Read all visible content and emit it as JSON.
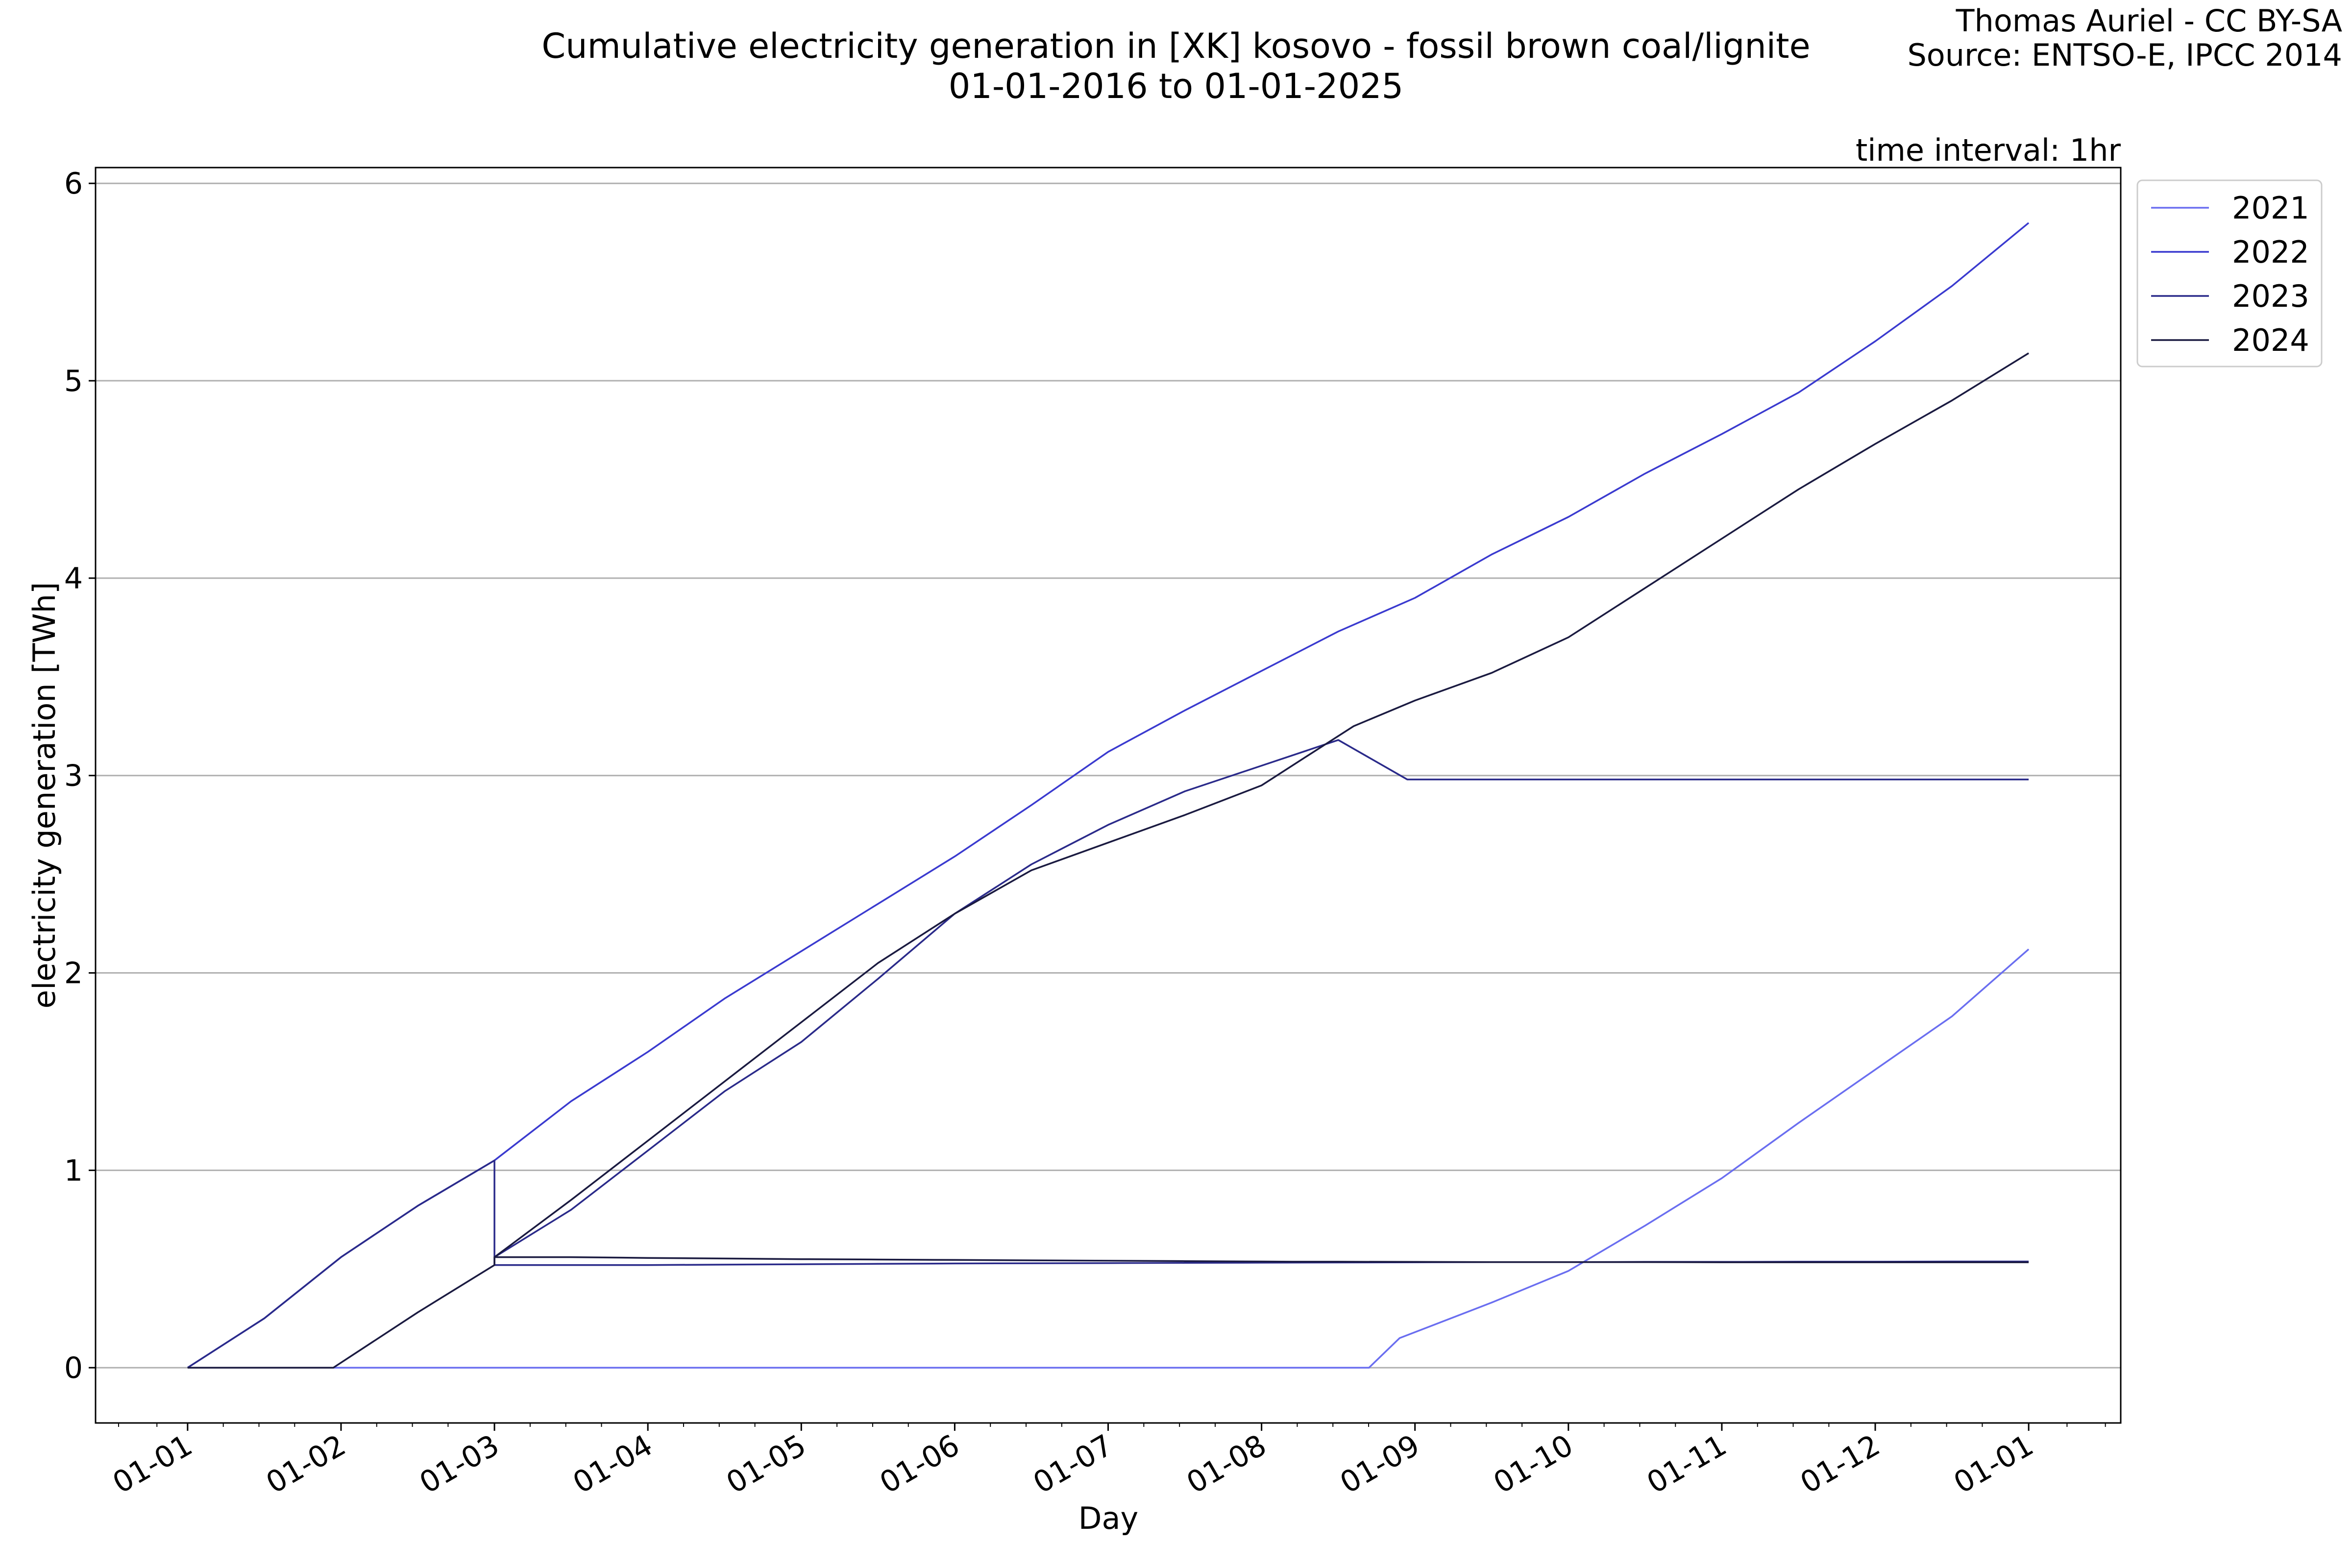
{
  "chart_data": {
    "type": "line",
    "title": "Cumulative electricity generation in [XK] kosovo - fossil brown coal/lignite",
    "subtitle": "01-01-2016 to 01-01-2025",
    "credit_line1": "Thomas Auriel - CC BY-SA",
    "credit_line2": "Source: ENTSO-E, IPCC 2014",
    "annotation": "time interval: 1hr",
    "xlabel": "Day",
    "ylabel": "electricity generation [TWh]",
    "x_ticks": [
      "01-01",
      "01-02",
      "01-03",
      "01-04",
      "01-05",
      "01-06",
      "01-07",
      "01-08",
      "01-09",
      "01-10",
      "01-11",
      "01-12",
      "01-01"
    ],
    "ylim": [
      -0.28,
      6.08
    ],
    "y_ticks": [
      0,
      1,
      2,
      3,
      4,
      5,
      6
    ],
    "grid": "horizontal",
    "legend_position": "outside-top-right",
    "x_unit_note": "x values are months since 01-01",
    "series": [
      {
        "name": "2021",
        "color": "#6a6ef0",
        "x": [
          0,
          7.7,
          7.9,
          8.5,
          9.0,
          9.5,
          10.0,
          10.5,
          11.0,
          11.5,
          12.0
        ],
        "y": [
          0,
          0,
          0.15,
          0.33,
          0.49,
          0.72,
          0.96,
          1.24,
          1.51,
          1.78,
          2.12
        ]
      },
      {
        "name": "2022",
        "color": "#3a3acf",
        "x": [
          0,
          0.5,
          1.0,
          1.5,
          2.0,
          2.5,
          3.0,
          3.5,
          4.0,
          4.5,
          5.0,
          5.5,
          6.0,
          6.5,
          7.0,
          7.5,
          8.0,
          8.5,
          9.0,
          9.5,
          10.0,
          10.5,
          11.0,
          11.5,
          12.0
        ],
        "y": [
          0,
          0.25,
          0.56,
          0.82,
          1.05,
          1.35,
          1.6,
          1.87,
          2.11,
          2.35,
          2.59,
          2.85,
          3.12,
          3.33,
          3.53,
          3.73,
          3.9,
          4.12,
          4.31,
          4.53,
          4.73,
          4.94,
          5.2,
          5.48,
          5.8
        ]
      },
      {
        "name": "2023",
        "color": "#2a2a8a",
        "x": [
          0,
          0.5,
          1.0,
          1.5,
          2.0,
          2.0,
          2.5,
          3.0,
          3.5,
          4.0,
          4.5,
          5.0,
          5.5,
          6.0,
          6.5,
          7.0,
          7.5,
          8.0,
          8.5,
          9.0,
          9.5,
          10.0,
          10.5,
          11.0,
          11.5,
          12.0
        ],
        "y": [
          0,
          0.25,
          0.56,
          0.82,
          1.05,
          0.52,
          0.52,
          0.52,
          0.522,
          0.524,
          0.526,
          0.528,
          0.529,
          0.53,
          0.531,
          0.532,
          0.533,
          0.534,
          0.535,
          0.535,
          0.536,
          0.536,
          0.537,
          0.537,
          0.538,
          0.538
        ]
      },
      {
        "name": "2024",
        "color": "#1a1a40",
        "x": [
          0,
          0.95,
          1.5,
          2.0,
          2.0,
          2.5,
          3.0,
          3.5,
          4.0,
          4.5,
          5.0,
          5.5,
          6.0,
          6.5,
          7.0,
          7.2,
          7.5,
          8.0,
          8.5,
          9.0,
          9.5,
          10.0,
          10.5,
          11.0,
          11.5,
          12.0
        ],
        "y": [
          0,
          0,
          0.28,
          0.52,
          0.56,
          0.56,
          0.556,
          0.553,
          0.55,
          0.548,
          0.546,
          0.544,
          0.542,
          0.54,
          0.538,
          0.537,
          0.537,
          0.536,
          0.535,
          0.535,
          0.535,
          0.534,
          0.534,
          0.534,
          0.534,
          0.534
        ]
      },
      {
        "name": "",
        "color": "#2a2a8a",
        "x": [
          2.0,
          2.5,
          3.0,
          3.5,
          4.0,
          4.5,
          5.0,
          5.5,
          6.0,
          6.5,
          7.0,
          7.5,
          7.95,
          12.0
        ],
        "y": [
          0.56,
          0.8,
          1.1,
          1.4,
          1.65,
          1.97,
          2.3,
          2.55,
          2.75,
          2.92,
          3.05,
          3.18,
          2.98,
          2.98
        ]
      },
      {
        "name": "",
        "color": "#1a1a40",
        "x": [
          2.0,
          2.5,
          3.0,
          3.5,
          4.0,
          4.5,
          5.0,
          5.5,
          6.0,
          6.5,
          7.0,
          7.3,
          7.6,
          8.0,
          8.5,
          9.0,
          9.5,
          10.0,
          10.5,
          11.0,
          11.5,
          12.0
        ],
        "y": [
          0.56,
          0.85,
          1.15,
          1.45,
          1.75,
          2.05,
          2.3,
          2.52,
          2.66,
          2.8,
          2.95,
          3.1,
          3.25,
          3.38,
          3.52,
          3.7,
          3.95,
          4.2,
          4.45,
          4.68,
          4.9,
          5.14
        ]
      }
    ]
  }
}
